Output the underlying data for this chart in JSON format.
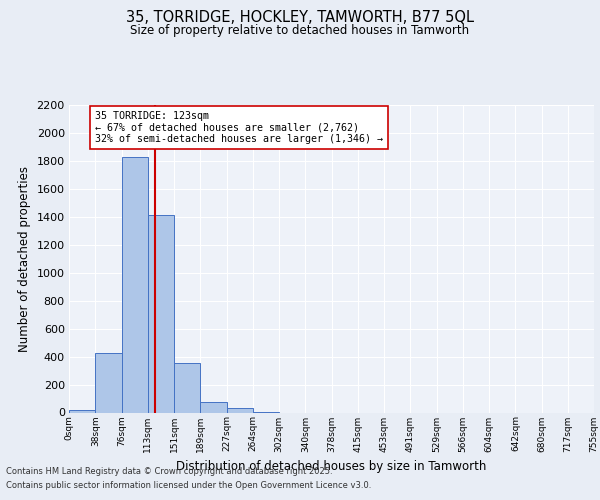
{
  "title1": "35, TORRIDGE, HOCKLEY, TAMWORTH, B77 5QL",
  "title2": "Size of property relative to detached houses in Tamworth",
  "xlabel": "Distribution of detached houses by size in Tamworth",
  "ylabel": "Number of detached properties",
  "bins": [
    0,
    38,
    76,
    113,
    151,
    189,
    227,
    264,
    302,
    340,
    378,
    415,
    453,
    491,
    529,
    566,
    604,
    642,
    680,
    717,
    755
  ],
  "counts": [
    20,
    425,
    1830,
    1415,
    355,
    75,
    30,
    5,
    0,
    0,
    0,
    0,
    0,
    0,
    0,
    0,
    0,
    0,
    0,
    0
  ],
  "bar_color": "#aec6e8",
  "bar_edge_color": "#4472c4",
  "vline_x": 123,
  "vline_color": "#cc0000",
  "annotation_text": "35 TORRIDGE: 123sqm\n← 67% of detached houses are smaller (2,762)\n32% of semi-detached houses are larger (1,346) →",
  "annotation_box_color": "#ffffff",
  "annotation_box_edge_color": "#cc0000",
  "ylim": [
    0,
    2200
  ],
  "yticks": [
    0,
    200,
    400,
    600,
    800,
    1000,
    1200,
    1400,
    1600,
    1800,
    2000,
    2200
  ],
  "bg_color": "#e8edf5",
  "plot_bg_color": "#eef2f9",
  "grid_color": "#ffffff",
  "footer1": "Contains HM Land Registry data © Crown copyright and database right 2025.",
  "footer2": "Contains public sector information licensed under the Open Government Licence v3.0."
}
